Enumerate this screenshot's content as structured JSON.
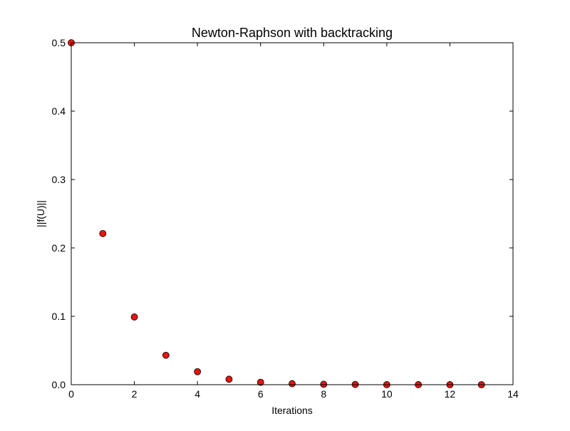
{
  "chart_data": {
    "type": "scatter",
    "title": "Newton-Raphson with backtracking",
    "xlabel": "Iterations",
    "ylabel": "||f(U)||",
    "xlim": [
      0,
      14
    ],
    "ylim": [
      0,
      0.5
    ],
    "xticks": [
      0,
      2,
      4,
      6,
      8,
      10,
      12,
      14
    ],
    "xtick_labels": [
      "0",
      "2",
      "4",
      "6",
      "8",
      "10",
      "12",
      "14"
    ],
    "yticks": [
      0,
      0.1,
      0.2,
      0.3,
      0.4,
      0.5
    ],
    "ytick_labels": [
      "0.0",
      "0.1",
      "0.2",
      "0.3",
      "0.4",
      "0.5"
    ],
    "grid": false,
    "marker_color": "#e8140f",
    "marker_edge": "#000000",
    "series": [
      {
        "x": [
          0,
          1,
          2,
          3,
          4,
          5,
          6,
          7,
          8,
          9,
          10,
          11,
          12,
          13
        ],
        "y": [
          0.5,
          0.221,
          0.099,
          0.043,
          0.019,
          0.008,
          0.0035,
          0.0015,
          0.0006,
          0.0003,
          0.0001,
          5e-05,
          2e-05,
          1e-05
        ]
      }
    ]
  }
}
